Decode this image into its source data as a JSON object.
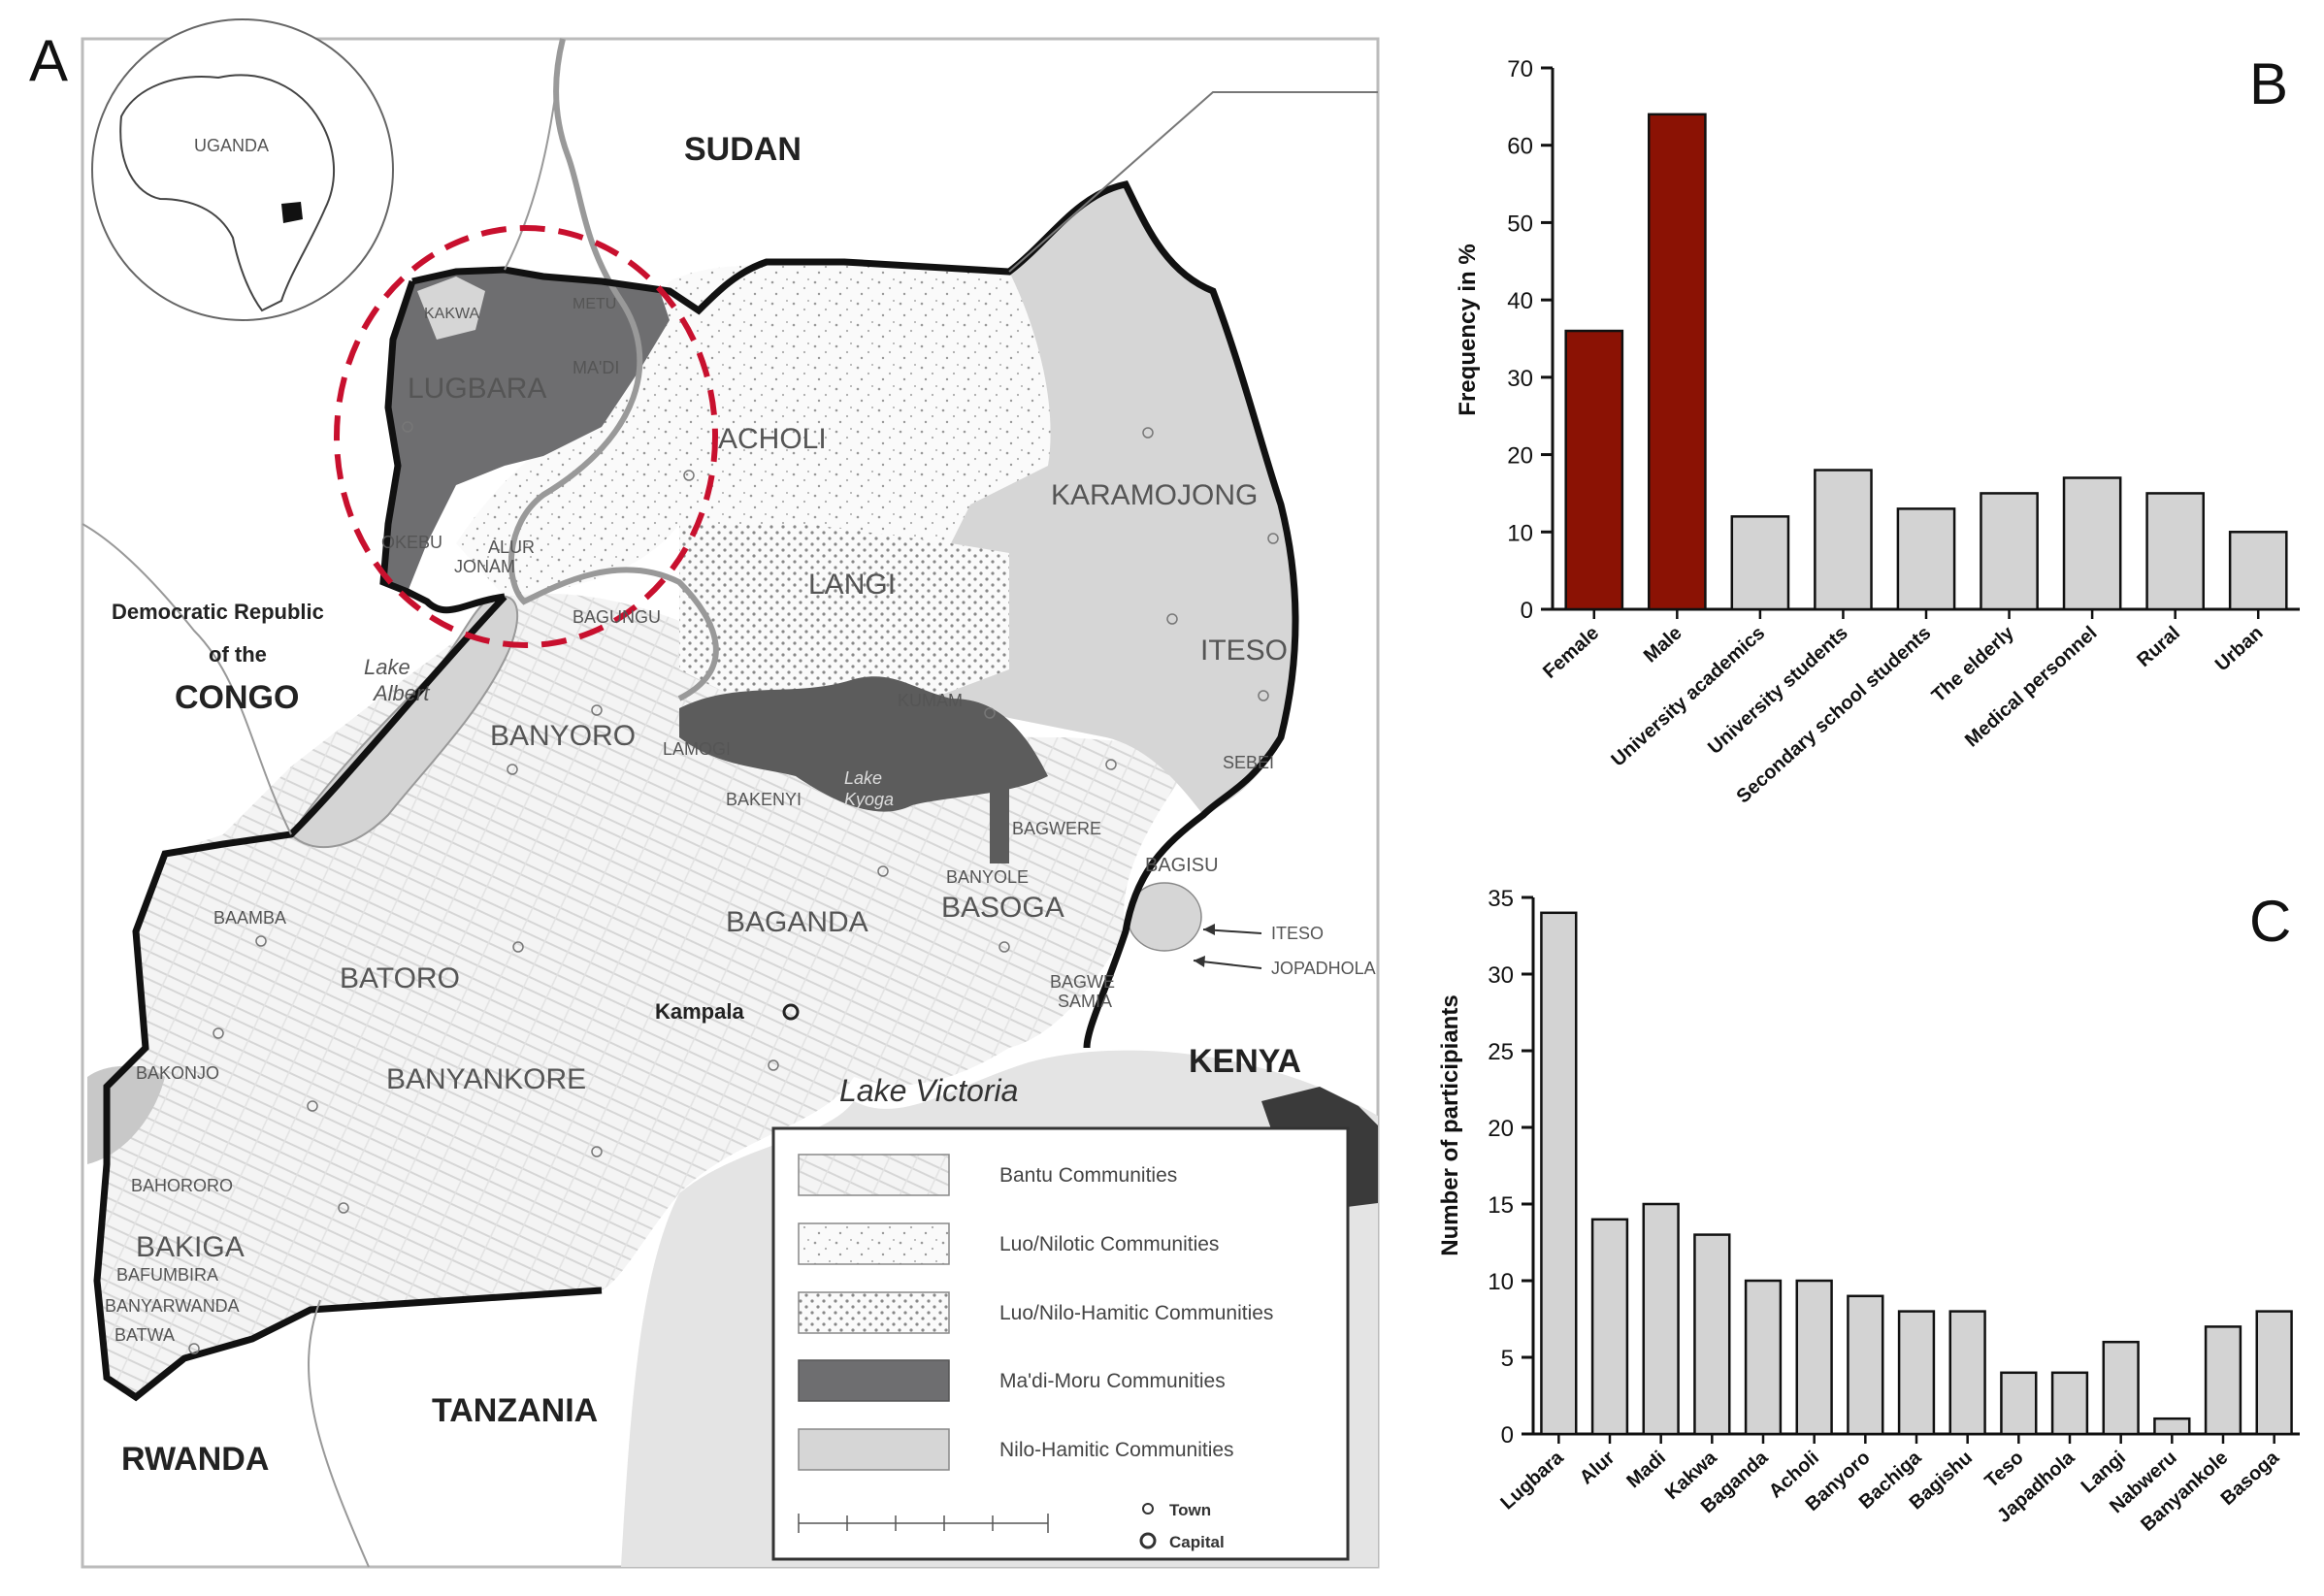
{
  "panels": {
    "a": "A",
    "b": "B",
    "c": "C"
  },
  "map": {
    "countries": {
      "sudan": "SUDAN",
      "kenya": "KENYA",
      "tanzania": "TANZANIA",
      "rwanda": "RWANDA",
      "drc_line1": "Democratic Republic",
      "drc_line2": "of the",
      "drc_line3": "CONGO"
    },
    "inset_label": "UGANDA",
    "lakes": {
      "albert_1": "Lake",
      "albert_2": "Albert",
      "victoria": "Lake Victoria",
      "kyoga_1": "Lake",
      "kyoga_2": "Kyoga"
    },
    "capital": "Kampala",
    "regions_large": {
      "lugbara": "LUGBARA",
      "acholi": "ACHOLI",
      "karamojong": "KARAMOJONG",
      "langi": "LANGI",
      "iteso": "ITESO",
      "banyoro": "BANYORO",
      "baganda": "BAGANDA",
      "basoga": "BASOGA",
      "batoro": "BATORO",
      "banyankore": "BANYANKORE",
      "bakiga": "BAKIGA"
    },
    "regions_small": {
      "kakwa": "KAKWA",
      "metu": "METU",
      "madi": "MA'DI",
      "okebu": "OKEBU",
      "alur": "ALUR",
      "jonam": "JONAM",
      "bagungu": "BAGUNGU",
      "lamogi": "LAMOGI",
      "kumam": "KUMAM",
      "bakenyi": "BAKENYI",
      "bagwere": "BAGWERE",
      "sebei": "SEBEI",
      "bagisu": "BAGISU",
      "banyole": "BANYOLE",
      "baamba": "BAAMBA",
      "bakonjo": "BAKONJO",
      "bahororo": "BAHORORO",
      "bafumbira": "BAFUMBIRA",
      "banyarwanda": "BANYARWANDA",
      "batwa": "BATWA",
      "bagwe": "BAGWE",
      "samia": "SAMIA"
    },
    "pointers": {
      "iteso": "ITESO",
      "jopadhola": "JOPADHOLA"
    },
    "legend": [
      {
        "label": "Bantu Communities",
        "pattern": "bantu"
      },
      {
        "label": "Luo/Nilotic Communities",
        "pattern": "luo"
      },
      {
        "label": "Luo/Nilo-Hamitic Communities",
        "pattern": "luonh"
      },
      {
        "label": "Ma'di-Moru Communities",
        "pattern": "madi"
      },
      {
        "label": "Nilo-Hamitic Communities",
        "pattern": "nilo"
      }
    ],
    "symbols": {
      "town": "Town",
      "capital": "Capital"
    },
    "colors": {
      "madi_moru": "#6e6e70",
      "nilo_hamitic": "#d4d4d4",
      "water": "#c8c8c8",
      "highlight_circle": "#c8102e"
    }
  },
  "chart_data": [
    {
      "type": "bar",
      "panel": "B",
      "categories": [
        "Female",
        "Male",
        "University academics",
        "University students",
        "Secondary school students",
        "The elderly",
        "Medical personnel",
        "Rural",
        "Urban"
      ],
      "values": [
        36,
        64,
        12,
        18,
        13,
        15,
        17,
        15,
        10
      ],
      "colors": [
        "#8b1204",
        "#8b1204",
        "#d3d3d3",
        "#d3d3d3",
        "#d3d3d3",
        "#d3d3d3",
        "#d3d3d3",
        "#d3d3d3",
        "#d3d3d3"
      ],
      "ylabel": "Frequency in %",
      "ylim": [
        0,
        70
      ],
      "yticks": [
        0,
        10,
        20,
        30,
        40,
        50,
        60,
        70
      ],
      "grid": false
    },
    {
      "type": "bar",
      "panel": "C",
      "categories": [
        "Lugbara",
        "Alur",
        "Madi",
        "Kakwa",
        "Baganda",
        "Acholi",
        "Banyoro",
        "Bachiga",
        "Bagishu",
        "Teso",
        "Japadhola",
        "Langi",
        "Nabweru",
        "Banyankole",
        "Basoga"
      ],
      "values": [
        34,
        14,
        15,
        13,
        10,
        10,
        9,
        8,
        8,
        4,
        4,
        6,
        1,
        7,
        8
      ],
      "colors": [
        "#d3d3d3"
      ],
      "ylabel": "Number of participiants",
      "ylim": [
        0,
        35
      ],
      "yticks": [
        0,
        5,
        10,
        15,
        20,
        25,
        30,
        35
      ],
      "grid": false
    }
  ]
}
